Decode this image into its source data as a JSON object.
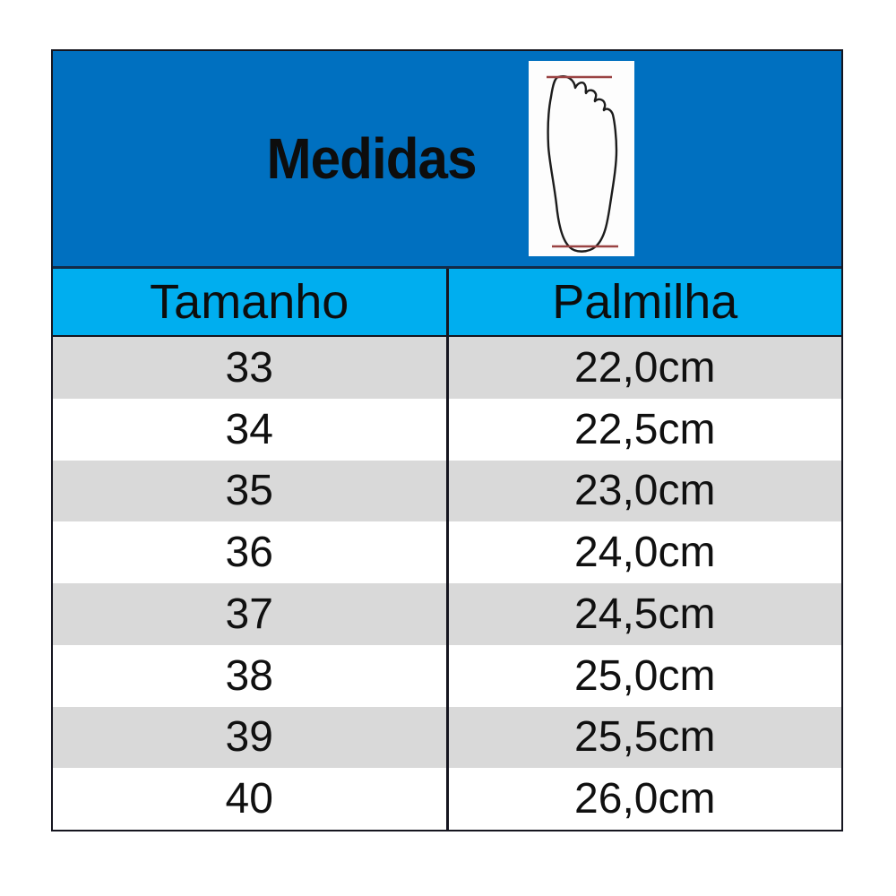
{
  "colors": {
    "header_blue": "#0070c0",
    "subheader_blue": "#00aeef",
    "row_gray": "#d9d9d9",
    "row_white": "#ffffff",
    "border_black": "#15151f",
    "measure_line_red": "#9a4343",
    "text_black": "#0d0d0d"
  },
  "icons": {
    "foot": "foot-outline-icon"
  },
  "chart_data": {
    "type": "table",
    "title": "Medidas",
    "columns": [
      "Tamanho",
      "Palmilha"
    ],
    "rows": [
      [
        "33",
        "22,0cm"
      ],
      [
        "34",
        "22,5cm"
      ],
      [
        "35",
        "23,0cm"
      ],
      [
        "36",
        "24,0cm"
      ],
      [
        "37",
        "24,5cm"
      ],
      [
        "38",
        "25,0cm"
      ],
      [
        "39",
        "25,5cm"
      ],
      [
        "40",
        "26,0cm"
      ]
    ],
    "layout": {
      "header_background": "#0070c0",
      "column_header_background": "#00aeef",
      "alternating_row_colors": [
        "#d9d9d9",
        "#ffffff"
      ],
      "grid": "outer border, single center column divider, no row lines"
    }
  }
}
